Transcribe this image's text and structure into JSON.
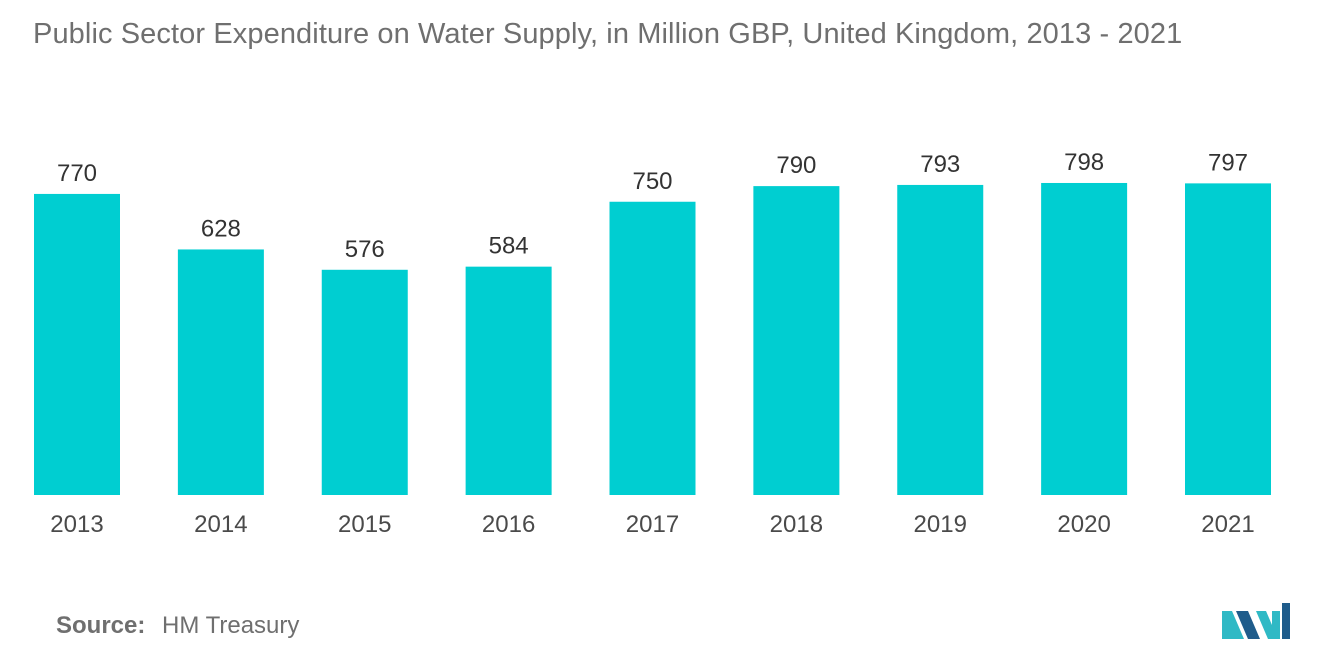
{
  "title": "Public Sector Expenditure on Water Supply, in Million GBP, United Kingdom, 2013 - 2021",
  "source": {
    "label": "Source:",
    "value": "HM Treasury"
  },
  "logo": {
    "icon": "mordor-intelligence-logo-icon",
    "colors": [
      "#2fb9c5",
      "#1f5c8b"
    ]
  },
  "chart_data": {
    "type": "bar",
    "categories": [
      "2013",
      "2014",
      "2015",
      "2016",
      "2017",
      "2018",
      "2019",
      "2020",
      "2021"
    ],
    "values": [
      770,
      628,
      576,
      584,
      750,
      790,
      793,
      798,
      797
    ],
    "title": "Public Sector Expenditure on Water Supply, in Million GBP, United Kingdom, 2013 - 2021",
    "xlabel": "",
    "ylabel": "",
    "ylim": [
      0,
      800
    ],
    "grid": false,
    "legend": "none",
    "bar_color": "#00ced1",
    "label_color": "#333333",
    "axis_label_color": "#4a4a4a"
  }
}
